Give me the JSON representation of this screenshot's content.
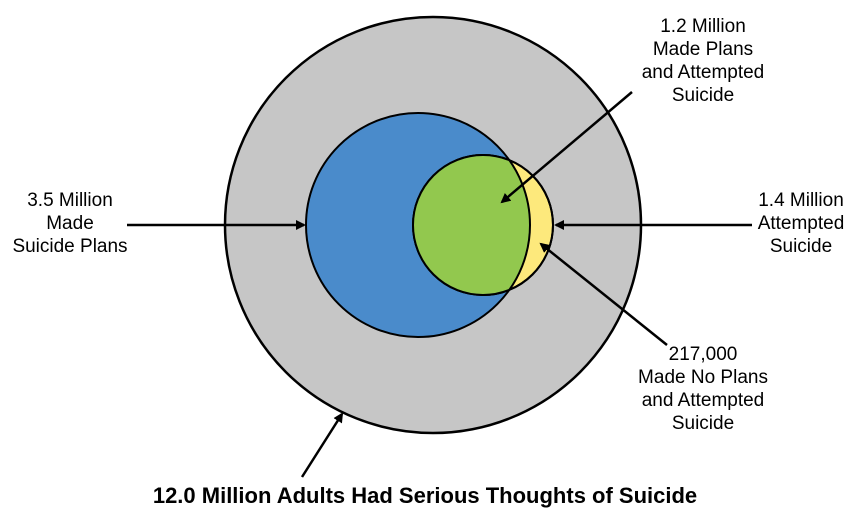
{
  "colors": {
    "outer": "#c6c6c6",
    "plans": "#4a8bcb",
    "attempted": "#fde97c",
    "both": "#92c84e",
    "stroke": "#000000"
  },
  "labels": {
    "plans_and_attempted": [
      "1.2 Million",
      "Made Plans",
      "and Attempted",
      "Suicide"
    ],
    "made_plans": [
      "3.5 Million",
      "Made",
      "Suicide Plans"
    ],
    "attempted": [
      "1.4 Million",
      "Attempted",
      "Suicide"
    ],
    "no_plans_attempted": [
      "217,000",
      "Made No Plans",
      "and Attempted",
      "Suicide"
    ]
  },
  "title": "12.0 Million Adults Had Serious Thoughts of Suicide"
}
